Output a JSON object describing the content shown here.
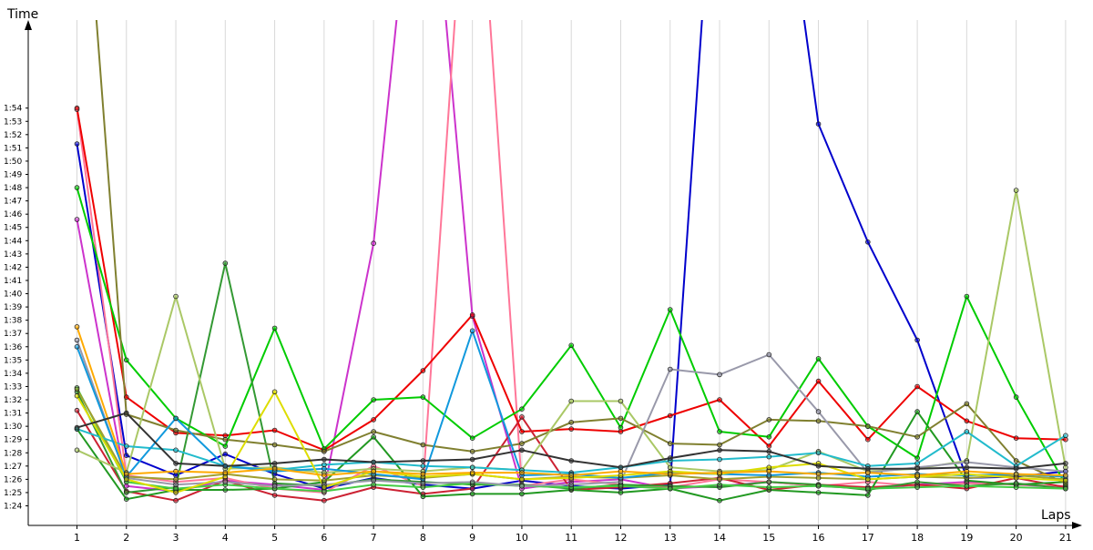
{
  "chart_data": {
    "type": "line",
    "xlabel": "Laps",
    "ylabel": "Time",
    "x": [
      1,
      2,
      3,
      4,
      5,
      6,
      7,
      8,
      9,
      10,
      11,
      12,
      13,
      14,
      15,
      16,
      17,
      18,
      19,
      20,
      21
    ],
    "xlim": [
      0,
      21
    ],
    "ylim_seconds": [
      83.1,
      117.6
    ],
    "y_ticks": [
      {
        "v": 84,
        "label": "1:24"
      },
      {
        "v": 85,
        "label": "1:25"
      },
      {
        "v": 86,
        "label": "1:26"
      },
      {
        "v": 87,
        "label": "1:27"
      },
      {
        "v": 88,
        "label": "1:28"
      },
      {
        "v": 89,
        "label": "1:29"
      },
      {
        "v": 90,
        "label": "1:30"
      },
      {
        "v": 91,
        "label": "1:31"
      },
      {
        "v": 92,
        "label": "1:32"
      },
      {
        "v": 93,
        "label": "1:33"
      },
      {
        "v": 94,
        "label": "1:34"
      },
      {
        "v": 95,
        "label": "1:35"
      },
      {
        "v": 96,
        "label": "1:36"
      },
      {
        "v": 97,
        "label": "1:37"
      },
      {
        "v": 98,
        "label": "1:38"
      },
      {
        "v": 99,
        "label": "1:39"
      },
      {
        "v": 100,
        "label": "1:40"
      },
      {
        "v": 101,
        "label": "1:41"
      },
      {
        "v": 102,
        "label": "1:42"
      },
      {
        "v": 103,
        "label": "1:43"
      },
      {
        "v": 104,
        "label": "1:44"
      },
      {
        "v": 105,
        "label": "1:45"
      },
      {
        "v": 106,
        "label": "1:46"
      },
      {
        "v": 107,
        "label": "1:47"
      },
      {
        "v": 108,
        "label": "1:48"
      },
      {
        "v": 109,
        "label": "1:49"
      },
      {
        "v": 110,
        "label": "1:50"
      },
      {
        "v": 111,
        "label": "1:51"
      },
      {
        "v": 112,
        "label": "1:52"
      },
      {
        "v": 113,
        "label": "1:53"
      },
      {
        "v": 114,
        "label": "1:54"
      }
    ],
    "x_tick_labels": [
      "1",
      "2",
      "3",
      "4",
      "5",
      "6",
      "7",
      "8",
      "9",
      "10",
      "11",
      "12",
      "13",
      "14",
      "15",
      "16",
      "17",
      "18",
      "19",
      "20",
      "21"
    ],
    "grid": true,
    "series": [
      {
        "color": "#0000cc",
        "values": [
          111.3,
          87.8,
          86.3,
          87.9,
          86.4,
          85.3,
          86.1,
          85.6,
          85.3,
          85.9,
          85.5,
          85.3,
          85.6,
          140.0,
          140.0,
          112.8,
          103.9,
          96.5,
          86.1,
          86.2,
          86.6
        ]
      },
      {
        "color": "#cc33cc",
        "values": [
          105.6,
          85.5,
          85.1,
          85.9,
          85.6,
          85.2,
          103.8,
          140.0,
          98.3,
          85.3,
          85.8,
          86.0,
          85.3,
          85.5,
          85.8,
          85.5,
          85.3,
          85.6,
          85.8,
          85.6,
          85.4
        ]
      },
      {
        "color": "#ff7799",
        "values": [
          113.9,
          86.3,
          85.8,
          86.1,
          85.3,
          85.0,
          87.0,
          85.5,
          140.0,
          85.5,
          86.0,
          85.6,
          85.4,
          86.0,
          85.8,
          85.5,
          85.8,
          85.5,
          85.7,
          85.6,
          85.5
        ]
      },
      {
        "color": "#ee0000",
        "values": [
          114.0,
          92.2,
          89.5,
          89.3,
          89.7,
          88.2,
          90.5,
          94.2,
          98.4,
          89.6,
          89.8,
          89.6,
          90.8,
          92.0,
          88.5,
          93.4,
          89.0,
          93.0,
          90.4,
          89.1,
          89.0
        ]
      },
      {
        "color": "#cc2233",
        "values": [
          91.2,
          85.1,
          84.4,
          85.9,
          84.8,
          84.4,
          85.4,
          84.9,
          85.3,
          90.7,
          85.2,
          85.4,
          85.7,
          86.1,
          85.2,
          85.6,
          85.4,
          85.6,
          85.3,
          86.1,
          85.4
        ]
      },
      {
        "color": "#00cc00",
        "values": [
          108.0,
          95.0,
          90.6,
          88.5,
          97.4,
          88.3,
          92.0,
          92.2,
          89.1,
          91.3,
          96.1,
          89.9,
          98.8,
          89.6,
          89.2,
          95.1,
          90.0,
          87.6,
          99.8,
          92.2,
          85.6
        ]
      },
      {
        "color": "#229922",
        "values": [
          89.8,
          84.5,
          85.2,
          85.2,
          85.3,
          85.8,
          89.2,
          84.7,
          84.9,
          84.9,
          85.2,
          85.0,
          85.3,
          84.4,
          85.2,
          85.0,
          84.8,
          91.1,
          85.9,
          85.6,
          85.8
        ]
      },
      {
        "color": "#339933",
        "values": [
          92.6,
          85.0,
          85.4,
          102.3,
          85.7,
          85.5,
          86.0,
          85.8,
          85.6,
          85.6,
          85.3,
          85.6,
          85.5,
          85.4,
          85.8,
          85.6,
          85.2,
          85.8,
          85.5,
          85.7,
          85.3
        ]
      },
      {
        "color": "#44cc44",
        "values": [
          92.9,
          85.8,
          85.3,
          85.6,
          85.3,
          85.1,
          85.6,
          85.4,
          85.7,
          85.5,
          85.4,
          85.5,
          85.3,
          85.6,
          85.4,
          85.5,
          85.3,
          85.4,
          85.5,
          85.4,
          85.3
        ]
      },
      {
        "color": "#808030",
        "values": [
          140.0,
          90.9,
          89.7,
          89.0,
          88.6,
          88.1,
          89.6,
          88.6,
          88.1,
          88.7,
          90.3,
          90.6,
          88.7,
          88.6,
          90.5,
          90.4,
          90.0,
          89.2,
          91.7,
          87.4,
          85.7
        ]
      },
      {
        "color": "#a0a030",
        "values": [
          92.8,
          86.2,
          86.0,
          86.4,
          86.0,
          85.9,
          86.3,
          86.1,
          86.4,
          86.0,
          86.2,
          86.1,
          86.3,
          86.0,
          86.2,
          86.1,
          86.0,
          86.2,
          86.1,
          86.3,
          86.0
        ]
      },
      {
        "color": "#aac866",
        "values": [
          88.2,
          86.5,
          99.8,
          86.8,
          86.9,
          86.5,
          86.8,
          86.6,
          86.9,
          86.7,
          91.9,
          91.9,
          86.9,
          86.6,
          86.7,
          88.1,
          86.6,
          86.8,
          87.4,
          107.8,
          86.9
        ]
      },
      {
        "color": "#9999aa",
        "values": [
          96.5,
          86.1,
          85.6,
          85.8,
          85.5,
          85.6,
          85.9,
          85.7,
          85.8,
          85.5,
          85.6,
          85.8,
          94.3,
          93.9,
          95.4,
          91.1,
          86.5,
          86.9,
          87.3,
          86.9,
          86.6
        ]
      },
      {
        "color": "#22bbcc",
        "values": [
          89.8,
          88.5,
          88.2,
          87.0,
          86.7,
          87.1,
          87.3,
          87.0,
          86.9,
          86.7,
          86.5,
          86.9,
          87.4,
          87.5,
          87.7,
          88.0,
          87.0,
          87.2,
          89.6,
          87.0,
          89.3
        ]
      },
      {
        "color": "#1199dd",
        "values": [
          96.0,
          86.2,
          90.6,
          87.0,
          86.6,
          86.8,
          86.4,
          86.0,
          97.2,
          86.3,
          86.4,
          86.1,
          86.5,
          86.4,
          86.3,
          86.5,
          86.2,
          86.4,
          86.3,
          86.4,
          86.2
        ]
      },
      {
        "color": "#dddd00",
        "values": [
          92.3,
          86.0,
          85.0,
          86.2,
          92.6,
          85.4,
          86.6,
          86.2,
          86.4,
          86.0,
          86.1,
          86.3,
          86.6,
          86.4,
          86.9,
          87.2,
          86.0,
          86.2,
          86.4,
          86.1,
          85.9
        ]
      },
      {
        "color": "#ffaa00",
        "values": [
          97.5,
          86.4,
          86.6,
          86.5,
          86.8,
          86.3,
          86.6,
          86.4,
          86.5,
          86.5,
          86.3,
          86.6,
          86.4,
          86.5,
          86.6,
          86.4,
          86.5,
          86.3,
          86.6,
          86.4,
          86.3
        ]
      },
      {
        "color": "#333333",
        "values": [
          89.9,
          91.0,
          87.2,
          87.0,
          87.2,
          87.5,
          87.3,
          87.4,
          87.5,
          88.2,
          87.4,
          86.9,
          87.6,
          88.2,
          88.1,
          87.0,
          86.8,
          86.8,
          86.9,
          86.8,
          87.2
        ]
      }
    ]
  }
}
